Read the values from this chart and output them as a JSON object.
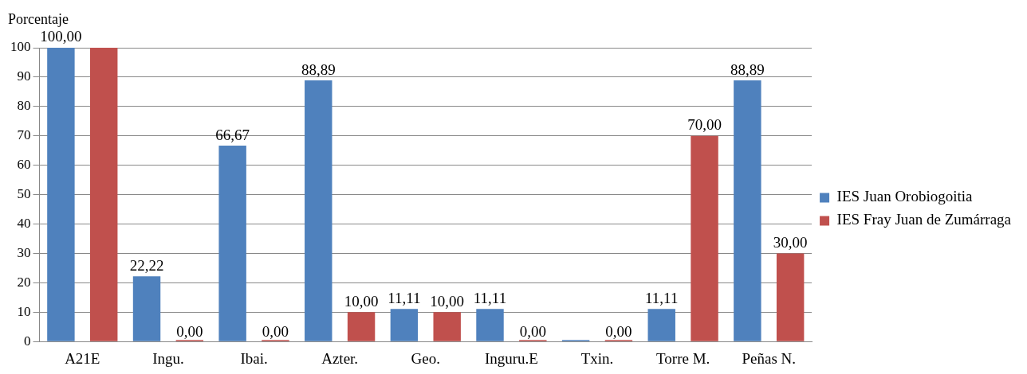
{
  "chart_data": {
    "type": "bar",
    "ylabel": "Porcentaje",
    "categories": [
      "A21E",
      "Ingu.",
      "Ibai.",
      "Azter.",
      "Geo.",
      "Inguru.E",
      "Txin.",
      "Torre M.",
      "Peñas N."
    ],
    "series": [
      {
        "name": "IES Juan Orobiogoitia",
        "color": "#4f81bd",
        "values": [
          100,
          22.22,
          66.67,
          88.89,
          11.11,
          11.11,
          0,
          11.11,
          88.89
        ],
        "value_labels": [
          "100,00",
          "22,22",
          "66,67",
          "88,89",
          "11,11",
          "11,11",
          null,
          "11,11",
          "88,89"
        ]
      },
      {
        "name": "IES Fray Juan de Zumárraga",
        "color": "#c0504d",
        "values": [
          100,
          0,
          0,
          10,
          10,
          0,
          0,
          70,
          30
        ],
        "value_labels": [
          null,
          "0,00",
          "0,00",
          "10,00",
          "10,00",
          "0,00",
          "0,00",
          "70,00",
          "30,00"
        ]
      }
    ],
    "ylim": [
      0,
      100
    ],
    "yticks": [
      0,
      10,
      20,
      30,
      40,
      50,
      60,
      70,
      80,
      90,
      100
    ],
    "grid": "y",
    "legend": "right"
  }
}
